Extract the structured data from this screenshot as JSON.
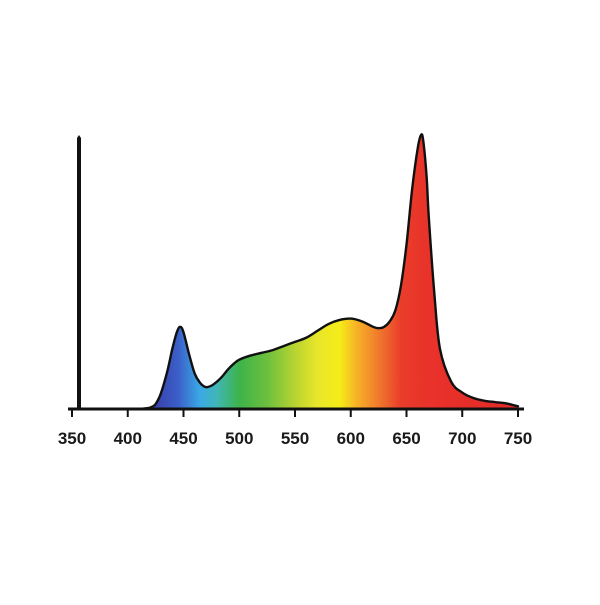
{
  "chart_data": {
    "type": "area",
    "title": "",
    "xlabel": "",
    "ylabel": "",
    "xlim": [
      350,
      750
    ],
    "ylim": [
      0,
      1
    ],
    "grid": false,
    "legend": "none",
    "x_ticks": [
      350,
      400,
      450,
      500,
      550,
      600,
      650,
      700,
      750
    ],
    "x_tick_labels": [
      "350",
      "400",
      "450",
      "500",
      "550",
      "600",
      "650",
      "700",
      "750"
    ],
    "series": [
      {
        "x": [
          350,
          400,
          420,
          428,
          435,
          440,
          444,
          447,
          450,
          455,
          460,
          465,
          470,
          475,
          480,
          485,
          490,
          495,
          500,
          510,
          520,
          530,
          540,
          550,
          560,
          570,
          580,
          590,
          600,
          610,
          620,
          625,
          630,
          635,
          640,
          645,
          650,
          655,
          660,
          663,
          665,
          668,
          670,
          675,
          680,
          690,
          700,
          710,
          720,
          730,
          740,
          745,
          750
        ],
        "values": [
          0.0,
          0.0,
          0.005,
          0.04,
          0.13,
          0.22,
          0.28,
          0.3,
          0.28,
          0.2,
          0.13,
          0.095,
          0.08,
          0.085,
          0.1,
          0.12,
          0.145,
          0.165,
          0.18,
          0.195,
          0.205,
          0.215,
          0.23,
          0.245,
          0.26,
          0.285,
          0.31,
          0.325,
          0.33,
          0.32,
          0.3,
          0.295,
          0.3,
          0.32,
          0.36,
          0.45,
          0.6,
          0.8,
          0.95,
          1.0,
          0.98,
          0.85,
          0.7,
          0.42,
          0.22,
          0.1,
          0.06,
          0.04,
          0.03,
          0.025,
          0.02,
          0.015,
          0.01
        ]
      }
    ],
    "colors": {
      "outline": "#111111",
      "axis": "#111111",
      "spectrum_stops": [
        {
          "nm": 420,
          "color": "#3a3aa8"
        },
        {
          "nm": 445,
          "color": "#3b5fc8"
        },
        {
          "nm": 465,
          "color": "#3aa9e6"
        },
        {
          "nm": 480,
          "color": "#41b6b5"
        },
        {
          "nm": 500,
          "color": "#3db34a"
        },
        {
          "nm": 525,
          "color": "#6cbf3e"
        },
        {
          "nm": 550,
          "color": "#b8d431"
        },
        {
          "nm": 570,
          "color": "#e8e62a"
        },
        {
          "nm": 590,
          "color": "#f5ec18"
        },
        {
          "nm": 605,
          "color": "#f6b326"
        },
        {
          "nm": 625,
          "color": "#f07a2c"
        },
        {
          "nm": 645,
          "color": "#ea3d2b"
        },
        {
          "nm": 670,
          "color": "#e8322a"
        },
        {
          "nm": 750,
          "color": "#e32a28"
        }
      ]
    }
  }
}
